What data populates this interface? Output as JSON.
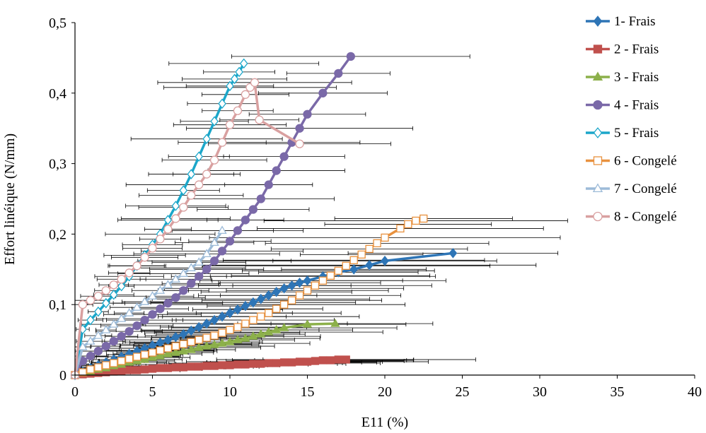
{
  "chart_data": {
    "type": "line",
    "title": "",
    "xlabel": "E11 (%)",
    "ylabel": "Effort linéique (N/mm)",
    "xlim": [
      0,
      40
    ],
    "ylim": [
      0,
      0.5
    ],
    "xticks": [
      {
        "v": 0,
        "label": "0"
      },
      {
        "v": 5,
        "label": "5"
      },
      {
        "v": 10,
        "label": "10"
      },
      {
        "v": 15,
        "label": "15"
      },
      {
        "v": 20,
        "label": "20"
      },
      {
        "v": 25,
        "label": "25"
      },
      {
        "v": 30,
        "label": "30"
      },
      {
        "v": 35,
        "label": "35"
      },
      {
        "v": 40,
        "label": "40"
      }
    ],
    "yticks": [
      {
        "v": 0,
        "label": "0"
      },
      {
        "v": 0.1,
        "label": "0,1"
      },
      {
        "v": 0.2,
        "label": "0,2"
      },
      {
        "v": 0.3,
        "label": "0,3"
      },
      {
        "v": 0.4,
        "label": "0,4"
      },
      {
        "v": 0.5,
        "label": "0,5"
      }
    ],
    "grid": false,
    "legend_position": "right",
    "series": [
      {
        "name": "1- Frais",
        "color": "#2e75b6",
        "marker": "diamond",
        "filled": true,
        "x": [
          0,
          0.5,
          1,
          1.5,
          2,
          2.5,
          3,
          3.5,
          4,
          4.5,
          5,
          5.5,
          6,
          6.5,
          7,
          7.5,
          8,
          8.5,
          9,
          9.5,
          10,
          10.5,
          11,
          11.5,
          12,
          12.5,
          13,
          13.5,
          14,
          14.5,
          15,
          16,
          17,
          18,
          19,
          20,
          24.4
        ],
        "y": [
          0,
          0.005,
          0.01,
          0.014,
          0.018,
          0.022,
          0.026,
          0.03,
          0.034,
          0.038,
          0.042,
          0.046,
          0.05,
          0.054,
          0.058,
          0.063,
          0.068,
          0.073,
          0.078,
          0.083,
          0.088,
          0.093,
          0.098,
          0.103,
          0.108,
          0.113,
          0.118,
          0.123,
          0.127,
          0.131,
          0.134,
          0.14,
          0.146,
          0.15,
          0.156,
          0.162,
          0.173
        ]
      },
      {
        "name": "2 - Frais",
        "color": "#c0504d",
        "marker": "square",
        "filled": true,
        "x": [
          0,
          0.5,
          1,
          1.5,
          2,
          2.5,
          3,
          3.5,
          4,
          4.5,
          5,
          5.5,
          6,
          6.5,
          7,
          7.5,
          8,
          8.5,
          9,
          9.5,
          10,
          10.5,
          11,
          11.5,
          12,
          12.5,
          13,
          13.5,
          14,
          14.5,
          15,
          15.5,
          16,
          16.5,
          17,
          17.5
        ],
        "y": [
          0,
          0.001,
          0.002,
          0.003,
          0.004,
          0.005,
          0.006,
          0.007,
          0.007,
          0.008,
          0.009,
          0.01,
          0.01,
          0.011,
          0.011,
          0.012,
          0.012,
          0.013,
          0.013,
          0.014,
          0.014,
          0.015,
          0.015,
          0.016,
          0.016,
          0.017,
          0.017,
          0.018,
          0.018,
          0.019,
          0.019,
          0.02,
          0.021,
          0.021,
          0.022,
          0.022
        ]
      },
      {
        "name": "3 - Frais",
        "color": "#8cb04a",
        "marker": "triangle",
        "filled": true,
        "x": [
          0,
          0.5,
          1,
          1.5,
          2,
          2.5,
          3,
          3.5,
          4,
          4.5,
          5,
          5.5,
          6,
          6.5,
          7,
          7.5,
          8,
          8.5,
          9,
          9.5,
          10,
          10.5,
          11,
          11.5,
          12,
          12.5,
          13,
          13.5,
          15,
          16.8
        ],
        "y": [
          0,
          0.003,
          0.005,
          0.008,
          0.01,
          0.013,
          0.015,
          0.018,
          0.02,
          0.022,
          0.025,
          0.027,
          0.03,
          0.032,
          0.034,
          0.036,
          0.039,
          0.041,
          0.043,
          0.045,
          0.047,
          0.05,
          0.052,
          0.055,
          0.058,
          0.061,
          0.064,
          0.067,
          0.072,
          0.073
        ]
      },
      {
        "name": "4 - Frais",
        "color": "#7a69a8",
        "marker": "circle",
        "filled": true,
        "x": [
          0,
          0.5,
          1,
          1.5,
          2,
          2.5,
          3,
          3.5,
          4,
          4.5,
          5,
          5.5,
          6,
          6.5,
          7,
          7.5,
          8,
          8.5,
          9,
          9.5,
          10,
          10.5,
          11,
          11.5,
          12,
          12.5,
          13,
          13.5,
          14,
          14.5,
          15,
          16,
          17,
          17.8
        ],
        "y": [
          0,
          0.02,
          0.027,
          0.034,
          0.041,
          0.048,
          0.055,
          0.062,
          0.07,
          0.078,
          0.086,
          0.094,
          0.102,
          0.11,
          0.12,
          0.13,
          0.14,
          0.15,
          0.162,
          0.176,
          0.19,
          0.205,
          0.22,
          0.235,
          0.25,
          0.27,
          0.29,
          0.31,
          0.33,
          0.35,
          0.37,
          0.4,
          0.428,
          0.452
        ]
      },
      {
        "name": "5 - Frais",
        "color": "#1ba6c9",
        "marker": "diamond",
        "filled": false,
        "x": [
          0,
          0.5,
          1,
          1.5,
          2,
          2.5,
          3,
          3.5,
          4,
          4.5,
          5,
          5.5,
          6,
          6.5,
          7,
          7.5,
          8,
          8.5,
          9,
          9.5,
          10,
          10.3,
          10.6,
          10.9
        ],
        "y": [
          0,
          0.065,
          0.078,
          0.09,
          0.102,
          0.114,
          0.126,
          0.14,
          0.155,
          0.17,
          0.185,
          0.2,
          0.22,
          0.24,
          0.262,
          0.285,
          0.31,
          0.335,
          0.36,
          0.385,
          0.41,
          0.42,
          0.43,
          0.442
        ]
      },
      {
        "name": "6 - Congelé",
        "color": "#e8913e",
        "marker": "square",
        "filled": false,
        "x": [
          0,
          0.5,
          1,
          1.5,
          2,
          2.5,
          3,
          3.5,
          4,
          4.5,
          5,
          5.5,
          6,
          6.5,
          7,
          7.5,
          8,
          8.5,
          9,
          9.5,
          10,
          10.5,
          11,
          11.5,
          12,
          12.5,
          13,
          13.5,
          14,
          14.5,
          15,
          15.5,
          16,
          16.5,
          17,
          17.5,
          18,
          18.5,
          19,
          19.5,
          20,
          21,
          21.5,
          22,
          22.5
        ],
        "y": [
          0,
          0.004,
          0.008,
          0.011,
          0.014,
          0.017,
          0.02,
          0.023,
          0.026,
          0.029,
          0.032,
          0.035,
          0.038,
          0.041,
          0.044,
          0.047,
          0.05,
          0.053,
          0.056,
          0.06,
          0.064,
          0.068,
          0.073,
          0.078,
          0.083,
          0.088,
          0.094,
          0.1,
          0.106,
          0.113,
          0.12,
          0.127,
          0.134,
          0.141,
          0.148,
          0.155,
          0.163,
          0.171,
          0.179,
          0.187,
          0.195,
          0.208,
          0.214,
          0.219,
          0.222
        ]
      },
      {
        "name": "7 - Congelé",
        "color": "#9dbbd8",
        "marker": "triangle",
        "filled": false,
        "x": [
          0,
          0.5,
          1,
          1.5,
          2,
          2.5,
          3,
          3.5,
          4,
          4.5,
          5,
          5.5,
          6,
          6.5,
          7,
          7.5,
          8,
          8.5,
          9,
          9.5
        ],
        "y": [
          0,
          0.04,
          0.048,
          0.056,
          0.064,
          0.072,
          0.08,
          0.088,
          0.096,
          0.104,
          0.112,
          0.12,
          0.128,
          0.136,
          0.144,
          0.152,
          0.16,
          0.172,
          0.188,
          0.205
        ]
      },
      {
        "name": "8 - Congelé",
        "color": "#d9a0a0",
        "marker": "circle",
        "filled": false,
        "x": [
          0,
          0.5,
          1,
          1.5,
          2,
          2.5,
          3,
          3.5,
          4,
          4.5,
          5,
          5.5,
          6,
          6.5,
          7,
          7.5,
          8,
          8.5,
          9,
          9.5,
          10,
          10.5,
          11,
          11.3,
          11.6,
          11.9,
          14.5
        ],
        "y": [
          0,
          0.1,
          0.106,
          0.112,
          0.12,
          0.128,
          0.136,
          0.145,
          0.155,
          0.167,
          0.18,
          0.193,
          0.207,
          0.222,
          0.238,
          0.255,
          0.27,
          0.285,
          0.305,
          0.33,
          0.355,
          0.375,
          0.398,
          0.408,
          0.415,
          0.362,
          0.328
        ]
      }
    ]
  }
}
